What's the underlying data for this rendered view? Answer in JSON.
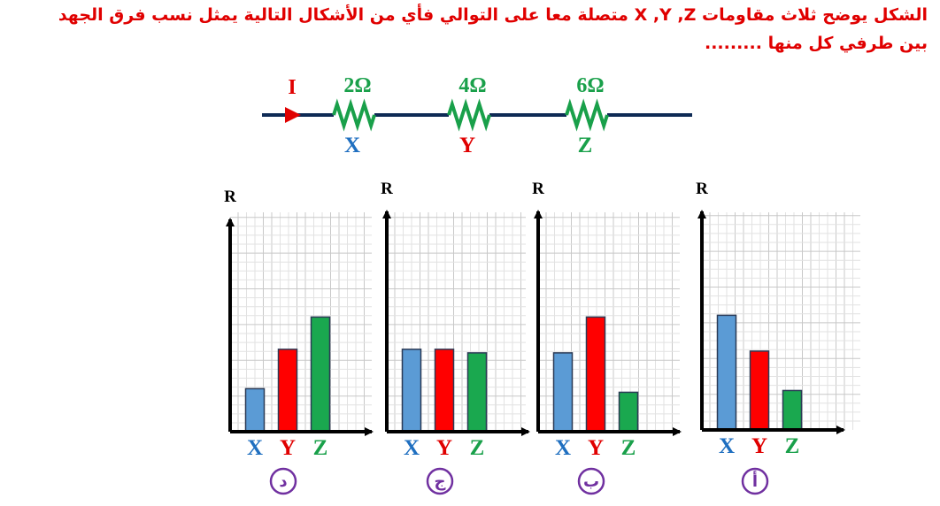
{
  "question": {
    "line1": "الشكل يوضح ثلاث مقاومات  X ,Y ,Z  متصلة معا على التوالي فأي من الأشكال التالية يمثل نسب فرق الجهد",
    "line2": "بين طرفي كل منها  ........."
  },
  "circuit": {
    "current_label": "I",
    "resistors": [
      {
        "value": "2Ω",
        "name": "X",
        "color": "#1f6fc0"
      },
      {
        "value": "4Ω",
        "name": "Y",
        "color": "#e00000"
      },
      {
        "value": "6Ω",
        "name": "Z",
        "color": "#19a04a"
      }
    ],
    "value_color": "#19a04a",
    "wire_color": "#0e2a55"
  },
  "chart_data": [
    {
      "type": "bar",
      "option_label": "د",
      "ylabel": "R",
      "categories": [
        "X",
        "Y",
        "Z"
      ],
      "values": [
        1.2,
        2.3,
        3.2
      ],
      "ylim": [
        0,
        6
      ],
      "grid": true
    },
    {
      "type": "bar",
      "option_label": "ج",
      "ylabel": "R",
      "categories": [
        "X",
        "Y",
        "Z"
      ],
      "values": [
        2.3,
        2.3,
        2.2
      ],
      "ylim": [
        0,
        6
      ],
      "grid": true
    },
    {
      "type": "bar",
      "option_label": "ب",
      "ylabel": "R",
      "categories": [
        "X",
        "Y",
        "Z"
      ],
      "values": [
        2.2,
        3.2,
        1.1
      ],
      "ylim": [
        0,
        6
      ],
      "grid": true
    },
    {
      "type": "bar",
      "option_label": "أ",
      "ylabel": "R",
      "categories": [
        "X",
        "Y",
        "Z"
      ],
      "values": [
        3.2,
        2.2,
        1.1
      ],
      "ylim": [
        0,
        6
      ],
      "grid": true
    }
  ],
  "colors": {
    "bar_x": "#5b9bd5",
    "bar_y": "#ff0000",
    "bar_z": "#1aa84f",
    "label_x": "#1f6fc0",
    "label_y": "#e00000",
    "label_z": "#19a04a",
    "option_circle": "#7030a0"
  }
}
